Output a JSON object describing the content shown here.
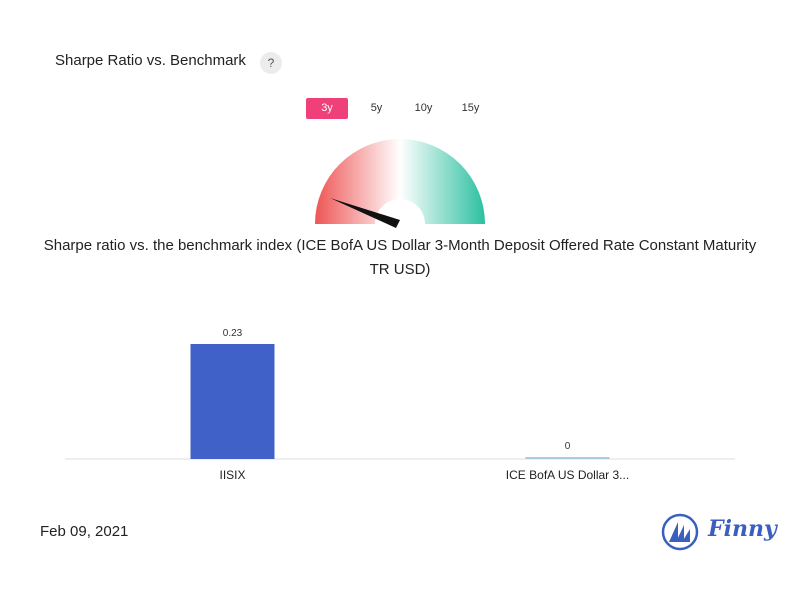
{
  "header": {
    "title": "Sharpe Ratio vs. Benchmark",
    "help_label": "?"
  },
  "period_tabs": [
    {
      "label": "3y",
      "active": true
    },
    {
      "label": "5y",
      "active": false
    },
    {
      "label": "10y",
      "active": false
    },
    {
      "label": "15y",
      "active": false
    }
  ],
  "gauge": {
    "colors": {
      "low": "#ee5555",
      "mid": "#ffffff",
      "high": "#2cc0a0",
      "needle": "#111111"
    }
  },
  "description": "Sharpe ratio vs. the benchmark index (ICE BofA US Dollar 3-Month Deposit Offered Rate Constant Maturity TR USD)",
  "chart_data": {
    "type": "bar",
    "categories": [
      "IISIX",
      "ICE BofA US Dollar 3..."
    ],
    "values": [
      0.23,
      0
    ],
    "data_labels": [
      "0.23",
      "0"
    ],
    "colors": [
      "#4062c8",
      "#a9cbe0"
    ],
    "ylim": [
      0,
      0.23
    ],
    "grid": false
  },
  "footer": {
    "date": "Feb 09, 2021",
    "brand": "Finny"
  }
}
